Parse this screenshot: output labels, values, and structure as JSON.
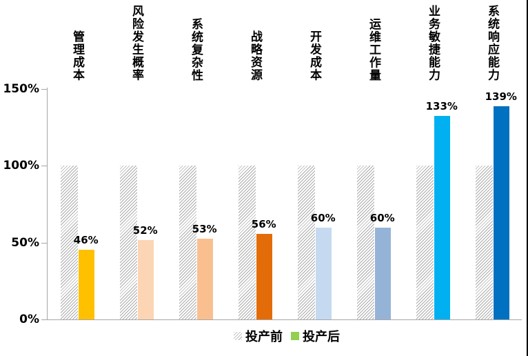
{
  "chart_data": {
    "type": "bar",
    "title": "",
    "xlabel": "",
    "ylabel": "",
    "categories": [
      "管理成本",
      "风险发生概率",
      "系统复杂性",
      "战略资源",
      "开发成本",
      "运维工作量",
      "业务敏捷能力",
      "系统响应能力"
    ],
    "series": [
      {
        "name": "投产前",
        "values": [
          100,
          100,
          100,
          100,
          100,
          100,
          100,
          100
        ],
        "fill_style": "hatched",
        "hatch_color": "#ABABAB",
        "data_labels_shown": false
      },
      {
        "name": "投产后",
        "values": [
          46,
          52,
          53,
          56,
          60,
          60,
          133,
          139
        ],
        "data_labels": [
          "46%",
          "52%",
          "53%",
          "56%",
          "60%",
          "60%",
          "133%",
          "139%"
        ],
        "point_colors": [
          "#FFC000",
          "#FCD5B4",
          "#FABF8F",
          "#E36C09",
          "#C5D9F1",
          "#95B3D7",
          "#00B0F0",
          "#0070C0"
        ],
        "legend_swatch_color": "#92D050"
      }
    ],
    "y_axis": {
      "ticks": [
        "0%",
        "50%",
        "100%",
        "150%"
      ],
      "tick_values": [
        0,
        50,
        100,
        150
      ],
      "min": 0,
      "max": 150
    },
    "grid": false,
    "legend_position": "bottom",
    "axis_color": "#A6A6A6",
    "text_color": "#000000",
    "background_color": "#FFFFFF"
  }
}
